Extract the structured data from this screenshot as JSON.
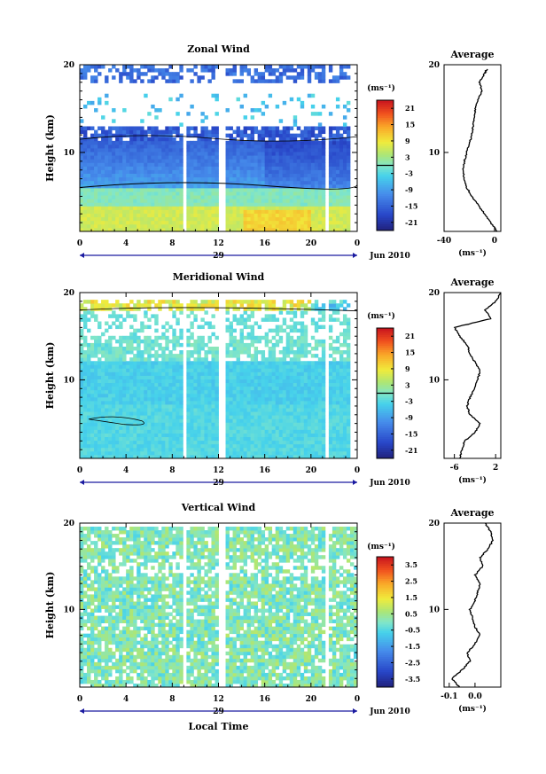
{
  "chart_data": [
    {
      "type": "heatmap",
      "title": "Zonal Wind",
      "ylabel": "Height (km)",
      "x_ticks": [
        "0",
        "4",
        "8",
        "12",
        "16",
        "20",
        "0"
      ],
      "y_ticks": [
        "10",
        "20"
      ],
      "date_label": "29",
      "month_label": "Jun 2010",
      "xlim": [
        0,
        24
      ],
      "ylim": [
        1,
        20
      ],
      "colorbar": {
        "unit": "(ms⁻¹)",
        "ticks": [
          "21",
          "15",
          "9",
          "3",
          "-3",
          "-9",
          "-15",
          "-21"
        ],
        "range": [
          -24,
          24
        ],
        "zero_line": 0
      },
      "profile": {
        "title": "Average",
        "x_ticks": [
          "-40",
          "0"
        ],
        "xlim": [
          -40,
          5
        ],
        "unit": "(ms⁻¹)",
        "heights": [
          1,
          2,
          3,
          4,
          5,
          6,
          7,
          8,
          9,
          10,
          11,
          12,
          13,
          14,
          15,
          16,
          17,
          18,
          19,
          19.5
        ],
        "values": [
          2,
          -3,
          -8,
          -13,
          -18,
          -22,
          -24,
          -25,
          -24,
          -22,
          -20,
          -18,
          -17,
          -16,
          -15,
          -13,
          -10,
          -12,
          -8,
          -6
        ]
      }
    },
    {
      "type": "heatmap",
      "title": "Meridional Wind",
      "ylabel": "Height (km)",
      "x_ticks": [
        "0",
        "4",
        "8",
        "12",
        "16",
        "20",
        "0"
      ],
      "y_ticks": [
        "10",
        "20"
      ],
      "date_label": "29",
      "month_label": "Jun 2010",
      "xlim": [
        0,
        24
      ],
      "ylim": [
        1,
        20
      ],
      "colorbar": {
        "unit": "(ms⁻¹)",
        "ticks": [
          "21",
          "15",
          "9",
          "3",
          "-3",
          "-9",
          "-15",
          "-21"
        ],
        "range": [
          -24,
          24
        ],
        "zero_line": 0
      },
      "profile": {
        "title": "Average",
        "x_ticks": [
          "-6",
          "2"
        ],
        "xlim": [
          -8,
          3
        ],
        "unit": "(ms⁻¹)",
        "heights": [
          1,
          2,
          3,
          4,
          5,
          6,
          7,
          8,
          9,
          10,
          11,
          12,
          13,
          14,
          15,
          16,
          17,
          18,
          19,
          20
        ],
        "values": [
          -5,
          -4.5,
          -4,
          -2,
          -1,
          -3,
          -3.5,
          -3,
          -2,
          -1.5,
          -1,
          -2,
          -3,
          -3.5,
          -5,
          -6,
          1,
          0,
          2,
          3
        ]
      }
    },
    {
      "type": "heatmap",
      "title": "Vertical Wind",
      "ylabel": "Height (km)",
      "xlabel": "Local Time",
      "x_ticks": [
        "0",
        "4",
        "8",
        "12",
        "16",
        "20",
        "0"
      ],
      "y_ticks": [
        "10",
        "20"
      ],
      "date_label": "29",
      "month_label": "Jun 2010",
      "xlim": [
        0,
        24
      ],
      "ylim": [
        1,
        20
      ],
      "colorbar": {
        "unit": "(ms⁻¹)",
        "ticks": [
          "3.5",
          "2.5",
          "1.5",
          "0.5",
          "-0.5",
          "-1.5",
          "-2.5",
          "-3.5"
        ],
        "range": [
          -4,
          4
        ]
      },
      "profile": {
        "title": "Average",
        "x_ticks": [
          "-0.1",
          "0.0"
        ],
        "xlim": [
          -0.12,
          0.1
        ],
        "unit": "(ms⁻¹)",
        "heights": [
          1,
          2,
          3,
          4,
          5,
          6,
          7,
          8,
          9,
          10,
          11,
          12,
          13,
          14,
          15,
          16,
          17,
          18,
          19,
          20
        ],
        "values": [
          -0.06,
          -0.09,
          -0.05,
          -0.02,
          -0.03,
          0.0,
          0.02,
          0.0,
          -0.01,
          -0.02,
          0.0,
          0.01,
          0.02,
          0.0,
          0.03,
          0.02,
          0.05,
          0.07,
          0.06,
          0.04
        ]
      }
    }
  ]
}
